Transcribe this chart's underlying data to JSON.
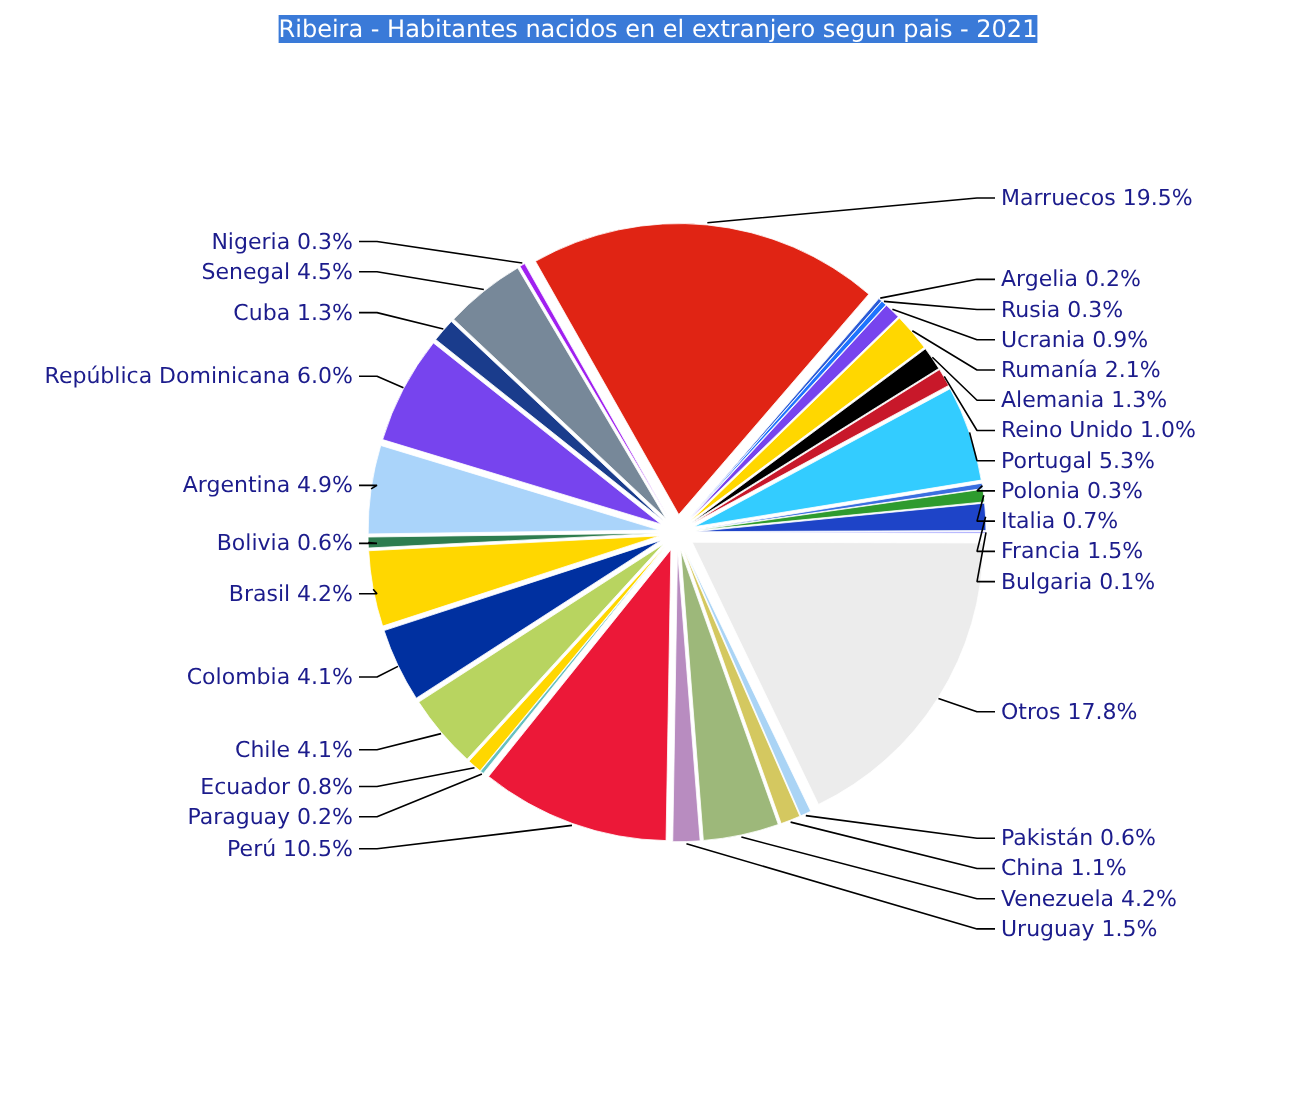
{
  "chart_data": {
    "type": "pie",
    "title": "Ribeira - Habitantes nacidos en el extranjero segun pais - 2021",
    "categories": [
      "Marruecos",
      "Argelia",
      "Rusia",
      "Ucrania",
      "Rumanía",
      "Alemania",
      "Reino Unido",
      "Portugal",
      "Polonia",
      "Italia",
      "Francia",
      "Bulgaria",
      "Otros",
      "Pakistán",
      "China",
      "Venezuela",
      "Uruguay",
      "Perú",
      "Paraguay",
      "Ecuador",
      "Chile",
      "Colombia",
      "Brasil",
      "Bolivia",
      "Argentina",
      "República Dominicana",
      "Cuba",
      "Senegal",
      "Nigeria"
    ],
    "values": [
      19.5,
      0.2,
      0.3,
      0.9,
      2.1,
      1.3,
      1.0,
      5.3,
      0.3,
      0.7,
      1.5,
      0.1,
      17.8,
      0.6,
      1.1,
      4.2,
      1.5,
      10.5,
      0.2,
      0.8,
      4.1,
      4.1,
      4.2,
      0.6,
      4.9,
      6.0,
      1.3,
      4.5,
      0.3
    ],
    "colors": [
      "#e02414",
      "#2a5bd7",
      "#1e73ff",
      "#7744ee",
      "#ffd700",
      "#000000",
      "#c8182a",
      "#33ccff",
      "#3b6fe0",
      "#2e9b2e",
      "#1e44c8",
      "#a0a0ff",
      "#ececec",
      "#aad4f5",
      "#d4c860",
      "#9db87a",
      "#b88cc0",
      "#ec1838",
      "#66c0c0",
      "#ffd700",
      "#b8d460",
      "#0030a0",
      "#ffd700",
      "#2e7d4f",
      "#aad4fa",
      "#7744ee",
      "#1a3c8c",
      "#778899",
      "#a020f0"
    ],
    "data_labels": true,
    "value_labels": [
      "19.5%",
      "0.2%",
      "0.3%",
      "0.9%",
      "2.1%",
      "1.3%",
      "1.0%",
      "5.3%",
      "0.3%",
      "0.7%",
      "1.5%",
      "0.1%",
      "17.8%",
      "0.6%",
      "1.1%",
      "4.2%",
      "1.5%",
      "10.5%",
      "0.2%",
      "0.8%",
      "4.1%",
      "4.1%",
      "4.2%",
      "0.6%",
      "4.9%",
      "6.0%",
      "1.3%",
      "4.5%",
      "0.3%"
    ]
  }
}
